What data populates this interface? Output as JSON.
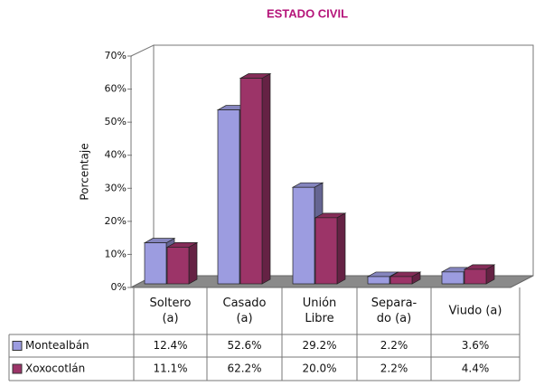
{
  "chart_data": {
    "type": "bar",
    "title": "ESTADO CIVIL",
    "y_label": "Porcentaje",
    "categories": [
      [
        "Soltero",
        "(a)"
      ],
      [
        "Casado",
        "(a)"
      ],
      [
        "Unión",
        "Libre"
      ],
      [
        "Separa-",
        "do (a)"
      ],
      [
        "Viudo (a)"
      ]
    ],
    "series": [
      {
        "name": "Montealbán",
        "color": "#9c9ce0",
        "values": [
          12.4,
          52.6,
          29.2,
          2.2,
          3.6
        ],
        "value_labels": [
          "12.4%",
          "52.6%",
          "29.2%",
          "2.2%",
          "3.6%"
        ]
      },
      {
        "name": "Xoxocotlán",
        "color": "#9c3468",
        "values": [
          11.1,
          62.2,
          20.0,
          2.2,
          4.4
        ],
        "value_labels": [
          "11.1%",
          "62.2%",
          "20.0%",
          "2.2%",
          "4.4%"
        ]
      }
    ],
    "ylim": [
      0,
      70
    ],
    "yticks": [
      {
        "value": 0,
        "label": "0%"
      },
      {
        "value": 10,
        "label": "10%"
      },
      {
        "value": 20,
        "label": "20%"
      },
      {
        "value": 30,
        "label": "30%"
      },
      {
        "value": 40,
        "label": "40%"
      },
      {
        "value": 50,
        "label": "50%"
      },
      {
        "value": 60,
        "label": "60%"
      },
      {
        "value": 70,
        "label": "70%"
      }
    ]
  }
}
